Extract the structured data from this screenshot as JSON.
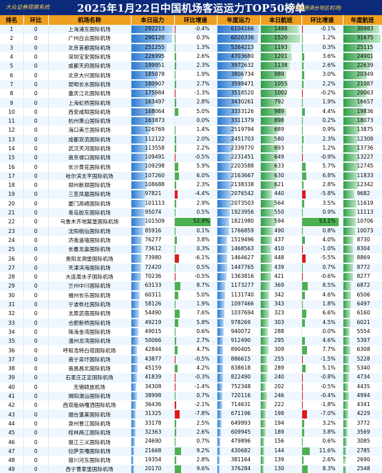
{
  "header": {
    "source": "大众证券观察系统",
    "title": "2025年1月22日中国机场客运运力TOP50榜单",
    "note": "(不含港澳台地区机场)"
  },
  "columns": [
    "排名",
    "环比",
    "机场名称",
    "本日运力",
    "环比增速",
    "年度运力",
    "本日航班",
    "环比增速",
    "年度航班"
  ],
  "colors": {
    "header_bg": "#0b2a7a",
    "column_header_bg": "#f0a020",
    "positive": "#4caf50",
    "negative": "#e01818"
  },
  "watermark": "@ 通讯社",
  "rows": [
    {
      "rank": "1",
      "chg": "0",
      "name": "上海浦东国际机场",
      "cap": "292213",
      "cap_growth": "-0.4%",
      "cap_year": "6104166",
      "flights": "1488",
      "fl_growth": "-0.1%",
      "fl_year": "30983"
    },
    {
      "rank": "2",
      "chg": "0",
      "name": "广州白云国际机场",
      "cap": "290120",
      "cap_growth": "0.3%",
      "cap_year": "6020336",
      "flights": "1520",
      "fl_growth": "1.2%",
      "fl_year": "31675"
    },
    {
      "rank": "3",
      "chg": "0",
      "name": "北京首都国际机场",
      "cap": "251255",
      "cap_growth": "1.3%",
      "cap_year": "5264213",
      "flights": "1193",
      "fl_growth": "0.3%",
      "fl_year": "25115"
    },
    {
      "rank": "4",
      "chg": "0",
      "name": "深圳宝安国际机场",
      "cap": "226995",
      "cap_growth": "2.6%",
      "cap_year": "4703680",
      "flights": "1201",
      "fl_growth": "3.6%",
      "fl_year": "24901"
    },
    {
      "rank": "5",
      "chg": "0",
      "name": "成都天府国际机场",
      "cap": "199951",
      "cap_growth": "2.3%",
      "cap_year": "3972632",
      "flights": "1138",
      "fl_growth": "2.6%",
      "fl_year": "22639"
    },
    {
      "rank": "6",
      "chg": "0",
      "name": "北京大兴国际机场",
      "cap": "185078",
      "cap_growth": "1.9%",
      "cap_year": "3806734",
      "flights": "989",
      "fl_growth": "3.0%",
      "fl_year": "20349"
    },
    {
      "rank": "7",
      "chg": "0",
      "name": "昆明长水国际机场",
      "cap": "180907",
      "cap_growth": "2.7%",
      "cap_year": "3598471",
      "flights": "1055",
      "fl_growth": "2.2%",
      "fl_year": "21087"
    },
    {
      "rank": "8",
      "chg": "0",
      "name": "重庆江北国际机场",
      "cap": "175984",
      "cap_growth": "-1.3%",
      "cap_year": "3518520",
      "flights": "1002",
      "fl_growth": "-0.2%",
      "fl_year": "20063"
    },
    {
      "rank": "9",
      "chg": "0",
      "name": "上海虹桥国际机场",
      "cap": "163497",
      "cap_growth": "2.8%",
      "cap_year": "3430261",
      "flights": "792",
      "fl_growth": "1.9%",
      "fl_year": "16657"
    },
    {
      "rank": "10",
      "chg": "0",
      "name": "西安咸阳国际机场",
      "cap": "168064",
      "cap_growth": "5.0%",
      "cap_year": "3333126",
      "flights": "989",
      "fl_growth": "4.4%",
      "fl_year": "19836"
    },
    {
      "rank": "11",
      "chg": "0",
      "name": "杭州萧山国际机场",
      "cap": "163873",
      "cap_growth": "0.0%",
      "cap_year": "3311379",
      "flights": "898",
      "fl_growth": "0.2%",
      "fl_year": "18073"
    },
    {
      "rank": "12",
      "chg": "0",
      "name": "海口美兰国际机场",
      "cap": "126769",
      "cap_growth": "1.4%",
      "cap_year": "2519794",
      "flights": "689",
      "fl_growth": "0.9%",
      "fl_year": "13875"
    },
    {
      "rank": "13",
      "chg": "0",
      "name": "成都双流国际机场",
      "cap": "112122",
      "cap_growth": "2.0%",
      "cap_year": "2451703",
      "flights": "580",
      "fl_growth": "2.3%",
      "fl_year": "12308"
    },
    {
      "rank": "14",
      "chg": "0",
      "name": "武汉天河国际机场",
      "cap": "113558",
      "cap_growth": "2.2%",
      "cap_year": "2339770",
      "flights": "693",
      "fl_growth": "1.2%",
      "fl_year": "13736"
    },
    {
      "rank": "15",
      "chg": "0",
      "name": "南京禄口国际机场",
      "cap": "109491",
      "cap_growth": "-0.5%",
      "cap_year": "2231451",
      "flights": "649",
      "fl_growth": "-0.9%",
      "fl_year": "13227"
    },
    {
      "rank": "16",
      "chg": "0",
      "name": "长沙黄花国际机场",
      "cap": "109298",
      "cap_growth": "5.9%",
      "cap_year": "2203588",
      "flights": "633",
      "fl_growth": "5.7%",
      "fl_year": "12745"
    },
    {
      "rank": "17",
      "chg": "0",
      "name": "哈尔滨太平国际机场",
      "cap": "107260",
      "cap_growth": "6.0%",
      "cap_year": "2163667",
      "flights": "630",
      "fl_growth": "6.8%",
      "fl_year": "11833"
    },
    {
      "rank": "18",
      "chg": "0",
      "name": "郑州新郑国际机场",
      "cap": "108688",
      "cap_growth": "2.3%",
      "cap_year": "2138338",
      "flights": "621",
      "fl_growth": "2.8%",
      "fl_year": "12342"
    },
    {
      "rank": "19",
      "chg": "0",
      "name": "三亚凤凰国际机场",
      "cap": "97821",
      "cap_growth": "-4.4%",
      "cap_year": "2076542",
      "flights": "440",
      "fl_growth": "-5.8%",
      "fl_year": "9682"
    },
    {
      "rank": "20",
      "chg": "0",
      "name": "厦门高崎国际机场",
      "cap": "101113",
      "cap_growth": "2.9%",
      "cap_year": "2073503",
      "flights": "564",
      "fl_growth": "3.5%",
      "fl_year": "11619"
    },
    {
      "rank": "21",
      "chg": "0",
      "name": "青岛胶东国际机场",
      "cap": "95074",
      "cap_growth": "0.5%",
      "cap_year": "1923956",
      "flights": "550",
      "fl_growth": "0.9%",
      "fl_year": "11113"
    },
    {
      "rank": "22",
      "chg": "0",
      "name": "乌鲁木齐地窝堡国际机场",
      "cap": "101509",
      "cap_growth": "52.9%",
      "cap_year": "1821980",
      "flights": "594",
      "fl_growth": "53.1%",
      "fl_year": "10706"
    },
    {
      "rank": "23",
      "chg": "0",
      "name": "沈阳桃仙国际机场",
      "cap": "85916",
      "cap_growth": "0.1%",
      "cap_year": "1766859",
      "flights": "490",
      "fl_growth": "0.8%",
      "fl_year": "10073"
    },
    {
      "rank": "24",
      "chg": "0",
      "name": "济南遥墙国际机场",
      "cap": "76277",
      "cap_growth": "3.8%",
      "cap_year": "1519496",
      "flights": "437",
      "fl_growth": "4.0%",
      "fl_year": "8730"
    },
    {
      "rank": "25",
      "chg": "0",
      "name": "长春龙嘉国际机场",
      "cap": "73612",
      "cap_growth": "0.3%",
      "cap_year": "1468563",
      "flights": "410",
      "fl_growth": "-1.0%",
      "fl_year": "8304"
    },
    {
      "rank": "26",
      "chg": "0",
      "name": "贵阳龙洞堡国际机场",
      "cap": "73980",
      "cap_growth": "-6.1%",
      "cap_year": "1464627",
      "flights": "448",
      "fl_growth": "-5.5%",
      "fl_year": "8869"
    },
    {
      "rank": "27",
      "chg": "0",
      "name": "天津滨海国际机场",
      "cap": "72420",
      "cap_growth": "0.5%",
      "cap_year": "1447765",
      "flights": "439",
      "fl_growth": "0.7%",
      "fl_year": "8772"
    },
    {
      "rank": "28",
      "chg": "0",
      "name": "大连周水子国际机场",
      "cap": "70236",
      "cap_growth": "-0.5%",
      "cap_year": "1363816",
      "flights": "421",
      "fl_growth": "-0.6%",
      "fl_year": "8277"
    },
    {
      "rank": "29",
      "chg": "0",
      "name": "兰州中川国际机场",
      "cap": "63133",
      "cap_growth": "8.7%",
      "cap_year": "1173277",
      "flights": "369",
      "fl_growth": "8.5%",
      "fl_year": "6872"
    },
    {
      "rank": "30",
      "chg": "0",
      "name": "福州长乐国际机场",
      "cap": "60311",
      "cap_growth": "5.0%",
      "cap_year": "1131740",
      "flights": "342",
      "fl_growth": "4.6%",
      "fl_year": "6506"
    },
    {
      "rank": "31",
      "chg": "0",
      "name": "宁波栎社国际机场",
      "cap": "58126",
      "cap_growth": "1.9%",
      "cap_year": "1097466",
      "flights": "343",
      "fl_growth": "1.8%",
      "fl_year": "6497"
    },
    {
      "rank": "32",
      "chg": "0",
      "name": "太原武宿国际机场",
      "cap": "54490",
      "cap_growth": "7.6%",
      "cap_year": "1037694",
      "flights": "323",
      "fl_growth": "6.6%",
      "fl_year": "6160"
    },
    {
      "rank": "33",
      "chg": "0",
      "name": "合肥新桥国际机场",
      "cap": "49219",
      "cap_growth": "5.8%",
      "cap_year": "978269",
      "flights": "303",
      "fl_growth": "4.5%",
      "fl_year": "6021"
    },
    {
      "rank": "34",
      "chg": "0",
      "name": "珠海金湾国际机场",
      "cap": "49015",
      "cap_growth": "0.6%",
      "cap_year": "940072",
      "flights": "288",
      "fl_growth": "0.0%",
      "fl_year": "5554"
    },
    {
      "rank": "35",
      "chg": "0",
      "name": "温州龙湾国际机场",
      "cap": "50066",
      "cap_growth": "2.7%",
      "cap_year": "912490",
      "flights": "295",
      "fl_growth": "4.6%",
      "fl_year": "5397"
    },
    {
      "rank": "36",
      "chg": "0",
      "name": "呼和浩特白塔国际机场",
      "cap": "42844",
      "cap_growth": "4.7%",
      "cap_year": "890405",
      "flights": "309",
      "fl_growth": "7.7%",
      "fl_year": "6308"
    },
    {
      "rank": "37",
      "chg": "0",
      "name": "南宁吴圩国际机场",
      "cap": "43877",
      "cap_growth": "-0.5%",
      "cap_year": "886615",
      "flights": "255",
      "fl_growth": "-1.5%",
      "fl_year": "5228"
    },
    {
      "rank": "38",
      "chg": "0",
      "name": "南昌昌北国际机场",
      "cap": "45159",
      "cap_growth": "4.2%",
      "cap_year": "838618",
      "flights": "289",
      "fl_growth": "5.1%",
      "fl_year": "5340"
    },
    {
      "rank": "39",
      "chg": "0",
      "name": "石家庄正定国际机场",
      "cap": "41839",
      "cap_growth": "-0.3%",
      "cap_year": "822490",
      "flights": "240",
      "fl_growth": "-0.8%",
      "fl_year": "4734"
    },
    {
      "rank": "40",
      "chg": "0",
      "name": "无锡硕放机场",
      "cap": "34308",
      "cap_growth": "-1.4%",
      "cap_year": "752348",
      "flights": "202",
      "fl_growth": "-0.5%",
      "fl_year": "4435"
    },
    {
      "rank": "41",
      "chg": "0",
      "name": "揭阳潮汕国际机场",
      "cap": "38998",
      "cap_growth": "0.7%",
      "cap_year": "720116",
      "flights": "246",
      "fl_growth": "-0.4%",
      "fl_year": "4994"
    },
    {
      "rank": "42",
      "chg": "0",
      "name": "西双版纳嘎洒国际机场",
      "cap": "36436",
      "cap_growth": "-2.1%",
      "cap_year": "714631",
      "flights": "222",
      "fl_growth": "-1.8%",
      "fl_year": "4341"
    },
    {
      "rank": "43",
      "chg": "0",
      "name": "烟台蓬莱国际机场",
      "cap": "31325",
      "cap_growth": "-7.8%",
      "cap_year": "671196",
      "flights": "198",
      "fl_growth": "-7.0%",
      "fl_year": "4229"
    },
    {
      "rank": "44",
      "chg": "0",
      "name": "泉州晋江国际机场",
      "cap": "33178",
      "cap_growth": "2.5%",
      "cap_year": "649993",
      "flights": "194",
      "fl_growth": "3.2%",
      "fl_year": "3772"
    },
    {
      "rank": "45",
      "chg": "0",
      "name": "桂林两江国际机场",
      "cap": "32363",
      "cap_growth": "2.6%",
      "cap_year": "609945",
      "flights": "189",
      "fl_growth": "3.8%",
      "fl_year": "3569"
    },
    {
      "rank": "46",
      "chg": "0",
      "name": "丽江三义国际机场",
      "cap": "24690",
      "cap_growth": "0.7%",
      "cap_year": "479896",
      "flights": "156",
      "fl_growth": "0.6%",
      "fl_year": "3085"
    },
    {
      "rank": "47",
      "chg": "0",
      "name": "拉萨贡嘎国际机场",
      "cap": "21668",
      "cap_growth": "9.2%",
      "cap_year": "430682",
      "flights": "144",
      "fl_growth": "11.6%",
      "fl_year": "2785"
    },
    {
      "rank": "48",
      "chg": "0",
      "name": "银川河东国际机场",
      "cap": "19354",
      "cap_growth": "2.8%",
      "cap_year": "381164",
      "flights": "139",
      "fl_growth": "2.6%",
      "fl_year": "2690"
    },
    {
      "rank": "49",
      "chg": "0",
      "name": "西宁曹家堡国际机场",
      "cap": "20170",
      "cap_growth": "9.6%",
      "cap_year": "376284",
      "flights": "130",
      "fl_growth": "8.3%",
      "fl_year": "2548"
    },
    {
      "rank": "50",
      "chg": "0",
      "name": "常州奔牛国际机场",
      "cap": "19250",
      "cap_growth": "-2.9%",
      "cap_year": "366016",
      "flights": "120",
      "fl_growth": "-0.8%",
      "fl_year": "2263"
    }
  ]
}
